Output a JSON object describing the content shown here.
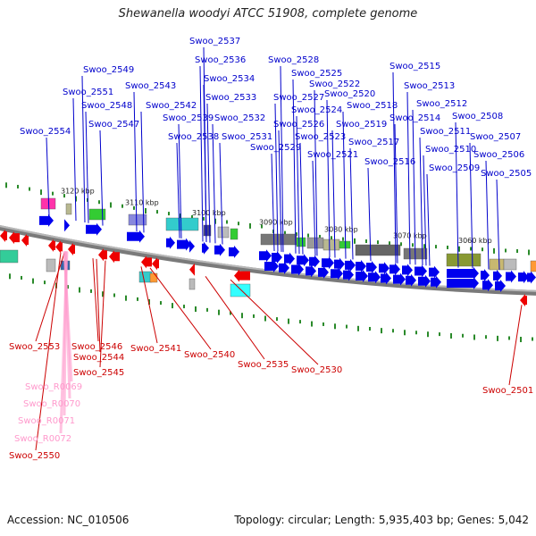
{
  "title": "Shewanella woodyi ATCC 51908, complete genome",
  "footer": {
    "accession": "Accession: NC_010506",
    "summary": "Topology: circular; Length: 5,935,403 bp; Genes: 5,042"
  },
  "colors": {
    "forward_label": "#0000cc",
    "reverse_label": "#cc0000",
    "rna_label": "#ff99cc",
    "forward_arrow": "#0000ee",
    "reverse_arrow": "#ee0000",
    "backbone": "#888888",
    "tick": "#2a8a2a"
  },
  "scale_labels": [
    "3120 kbp",
    "3110 kbp",
    "3100 kbp",
    "3090 kbp",
    "3080 kbp",
    "3070 kbp",
    "3060 kbp"
  ],
  "forward_genes": [
    "Swoo_2554",
    "Swoo_2551",
    "Swoo_2549",
    "Swoo_2548",
    "Swoo_2547",
    "Swoo_2543",
    "Swoo_2542",
    "Swoo_2539",
    "Swoo_2538",
    "Swoo_2537",
    "Swoo_2536",
    "Swoo_2534",
    "Swoo_2533",
    "Swoo_2532",
    "Swoo_2531",
    "Swoo_2529",
    "Swoo_2528",
    "Swoo_2527",
    "Swoo_2526",
    "Swoo_2525",
    "Swoo_2524",
    "Swoo_2523",
    "Swoo_2522",
    "Swoo_2521",
    "Swoo_2520",
    "Swoo_2519",
    "Swoo_2518",
    "Swoo_2517",
    "Swoo_2516",
    "Swoo_2515",
    "Swoo_2514",
    "Swoo_2513",
    "Swoo_2512",
    "Swoo_2511",
    "Swoo_2510",
    "Swoo_2509",
    "Swoo_2508",
    "Swoo_2507",
    "Swoo_2506",
    "Swoo_2505"
  ],
  "reverse_genes": [
    "Swoo_2553",
    "Swoo_2546",
    "Swoo_2544",
    "Swoo_2545",
    "Swoo_2541",
    "Swoo_2540",
    "Swoo_2535",
    "Swoo_2530",
    "Swoo_2501",
    "Swoo_2550"
  ],
  "rna_genes": [
    "Swoo_R0069",
    "Swoo_R0070",
    "Swoo_R0071",
    "Swoo_R0072"
  ]
}
